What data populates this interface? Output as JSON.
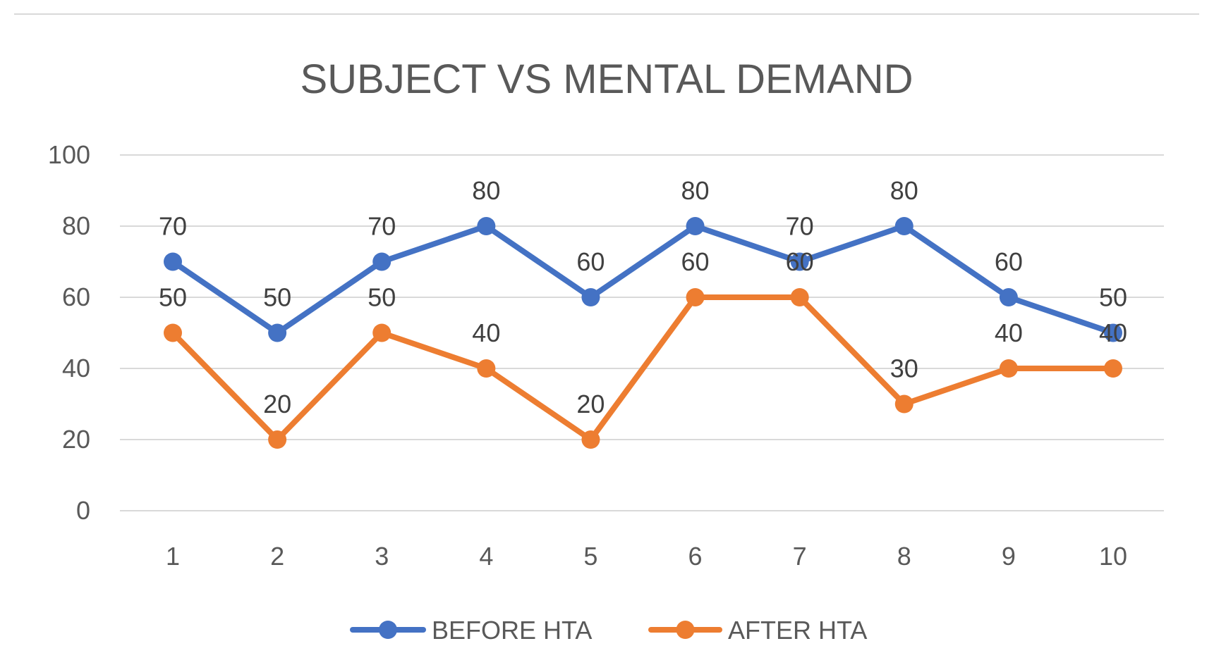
{
  "chart_data": {
    "type": "line",
    "title": "SUBJECT VS MENTAL DEMAND",
    "xlabel": "",
    "ylabel": "",
    "categories": [
      "1",
      "2",
      "3",
      "4",
      "5",
      "6",
      "7",
      "8",
      "9",
      "10"
    ],
    "ylim": [
      0,
      100
    ],
    "yticks": [
      0,
      20,
      40,
      60,
      80,
      100
    ],
    "grid": true,
    "legend_position": "bottom",
    "data_labels": true,
    "series": [
      {
        "name": "BEFORE HTA",
        "color": "#4472C4",
        "values": [
          70,
          50,
          70,
          80,
          60,
          80,
          70,
          80,
          60,
          50
        ]
      },
      {
        "name": "AFTER HTA",
        "color": "#ED7D31",
        "values": [
          50,
          20,
          50,
          40,
          20,
          60,
          60,
          30,
          40,
          40
        ]
      }
    ]
  }
}
